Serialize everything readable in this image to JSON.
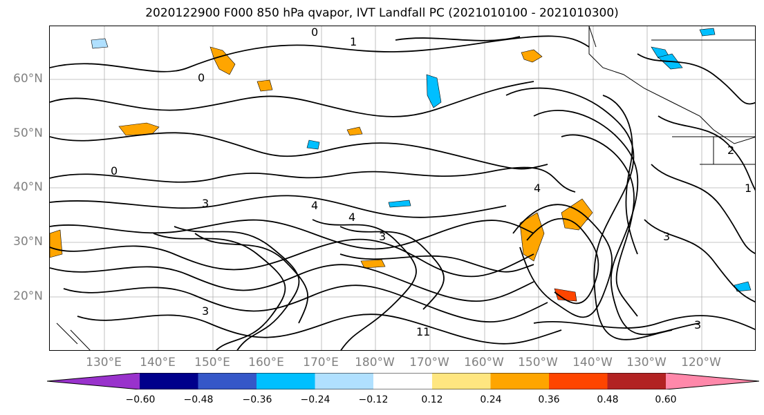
{
  "title": "2020122900 F000 850 hPa qvapor, IVT Landfall PC (2021010100 - 2021010300)",
  "lat_labels": [
    "60°N",
    "50°N",
    "40°N",
    "30°N",
    "20°N"
  ],
  "lon_labels": [
    "130°E",
    "140°E",
    "150°E",
    "160°E",
    "170°E",
    "180°W",
    "170°W",
    "160°W",
    "150°W",
    "140°W",
    "130°W",
    "120°W"
  ],
  "contour_labels": [
    "0",
    "1",
    "0",
    "0",
    "3",
    "4",
    "4",
    "4",
    "3",
    "3",
    "2",
    "1",
    "11",
    "3",
    "3"
  ],
  "colorbar": {
    "colors": [
      "#9932cc",
      "#00008b",
      "#3557c8",
      "#00bfff",
      "#b0e0ff",
      "#ffffff",
      "#ffe680",
      "#ffa500",
      "#ff4500",
      "#b22222",
      "#ff88aa"
    ],
    "ticks": [
      "−0.60",
      "−0.48",
      "−0.36",
      "−0.24",
      "−0.12",
      "0.12",
      "0.24",
      "0.36",
      "0.48",
      "0.60"
    ]
  }
}
